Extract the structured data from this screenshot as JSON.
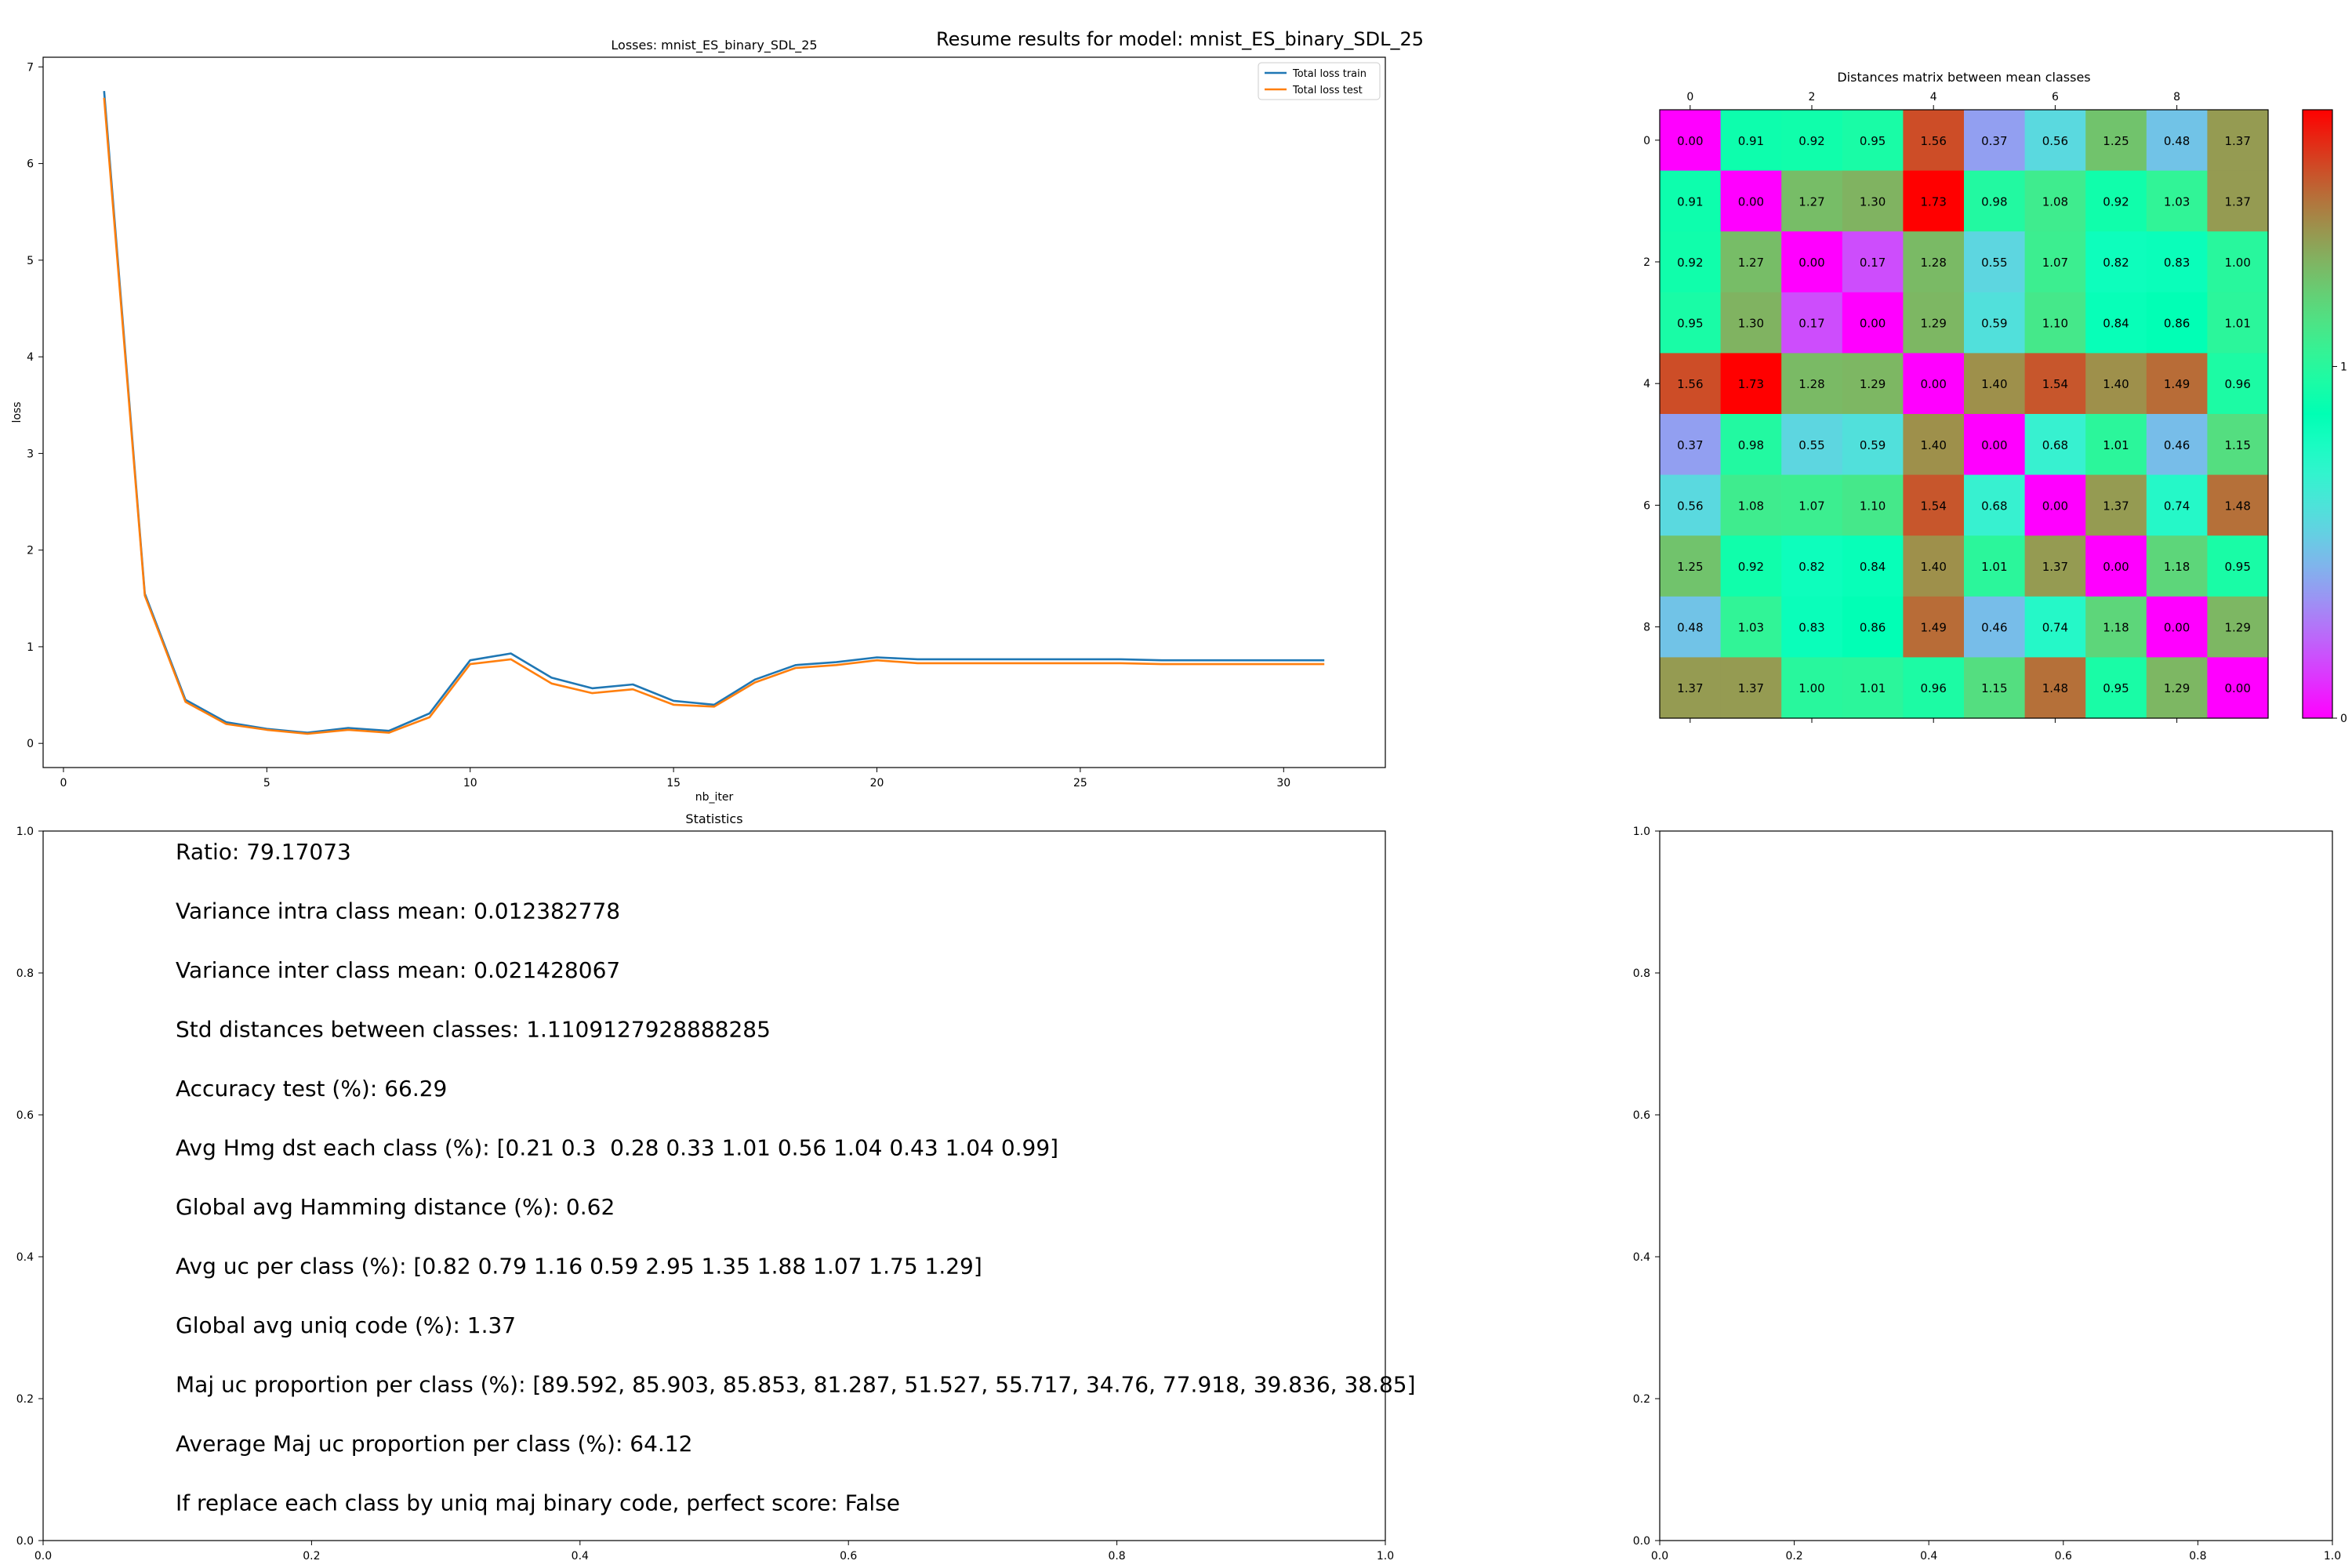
{
  "figure": {
    "suptitle": "Resume results for model: mnist_ES_binary_SDL_25"
  },
  "chart_data": [
    {
      "type": "line",
      "title": "Losses: mnist_ES_binary_SDL_25",
      "xlabel": "nb_iter",
      "ylabel": "loss",
      "xlim": [
        -0.5,
        32.5
      ],
      "ylim": [
        -0.25,
        7.1
      ],
      "xticks": [
        "0",
        "5",
        "10",
        "15",
        "20",
        "25",
        "30"
      ],
      "xtick_values": [
        0,
        5,
        10,
        15,
        20,
        25,
        30
      ],
      "yticks": [
        "0",
        "1",
        "2",
        "3",
        "4",
        "5",
        "6",
        "7"
      ],
      "ytick_values": [
        0,
        1,
        2,
        3,
        4,
        5,
        6,
        7
      ],
      "legend_position": "top-right",
      "x": [
        1,
        2,
        3,
        4,
        5,
        6,
        7,
        8,
        9,
        10,
        11,
        12,
        13,
        14,
        15,
        16,
        17,
        18,
        19,
        20,
        21,
        22,
        23,
        24,
        25,
        26,
        27,
        28,
        29,
        30,
        31
      ],
      "series": [
        {
          "name": "Total loss train",
          "color": "#1f77b4",
          "values": [
            6.75,
            1.55,
            0.45,
            0.22,
            0.15,
            0.11,
            0.16,
            0.13,
            0.31,
            0.86,
            0.93,
            0.68,
            0.57,
            0.61,
            0.44,
            0.4,
            0.66,
            0.81,
            0.84,
            0.89,
            0.87,
            0.87,
            0.87,
            0.87,
            0.87,
            0.87,
            0.86,
            0.86,
            0.86,
            0.86,
            0.86
          ]
        },
        {
          "name": "Total loss test",
          "color": "#ff7f0e",
          "values": [
            6.68,
            1.53,
            0.43,
            0.2,
            0.14,
            0.1,
            0.14,
            0.11,
            0.27,
            0.82,
            0.87,
            0.62,
            0.52,
            0.56,
            0.4,
            0.38,
            0.63,
            0.78,
            0.81,
            0.86,
            0.83,
            0.83,
            0.83,
            0.83,
            0.83,
            0.83,
            0.82,
            0.82,
            0.82,
            0.82,
            0.82
          ]
        }
      ]
    },
    {
      "type": "heatmap",
      "title": "Distances matrix between mean classes",
      "colormap": "rainbow",
      "vmin": 0,
      "vmax": 1.73,
      "xticks": [
        "0",
        "2",
        "4",
        "6",
        "8"
      ],
      "xtick_values": [
        0,
        2,
        4,
        6,
        8
      ],
      "yticks": [
        "0",
        "2",
        "4",
        "6",
        "8"
      ],
      "ytick_values": [
        0,
        2,
        4,
        6,
        8
      ],
      "colorbar_ticks": [
        "0",
        "1"
      ],
      "colorbar_tick_values": [
        0,
        1
      ],
      "matrix": [
        [
          "0.00",
          "0.91",
          "0.92",
          "0.95",
          "1.56",
          "0.37",
          "0.56",
          "1.25",
          "0.48",
          "1.37"
        ],
        [
          "0.91",
          "0.00",
          "1.27",
          "1.30",
          "1.73",
          "0.98",
          "1.08",
          "0.92",
          "1.03",
          "1.37"
        ],
        [
          "0.92",
          "1.27",
          "0.00",
          "0.17",
          "1.28",
          "0.55",
          "1.07",
          "0.82",
          "0.83",
          "1.00"
        ],
        [
          "0.95",
          "1.30",
          "0.17",
          "0.00",
          "1.29",
          "0.59",
          "1.10",
          "0.84",
          "0.86",
          "1.01"
        ],
        [
          "1.56",
          "1.73",
          "1.28",
          "1.29",
          "0.00",
          "1.40",
          "1.54",
          "1.40",
          "1.49",
          "0.96"
        ],
        [
          "0.37",
          "0.98",
          "0.55",
          "0.59",
          "1.40",
          "0.00",
          "0.68",
          "1.01",
          "0.46",
          "1.15"
        ],
        [
          "0.56",
          "1.08",
          "1.07",
          "1.10",
          "1.54",
          "0.68",
          "0.00",
          "1.37",
          "0.74",
          "1.48"
        ],
        [
          "1.25",
          "0.92",
          "0.82",
          "0.84",
          "1.40",
          "1.01",
          "1.37",
          "0.00",
          "1.18",
          "0.95"
        ],
        [
          "0.48",
          "1.03",
          "0.83",
          "0.86",
          "1.49",
          "0.46",
          "0.74",
          "1.18",
          "0.00",
          "1.29"
        ],
        [
          "1.37",
          "1.37",
          "1.00",
          "1.01",
          "0.96",
          "1.15",
          "1.48",
          "0.95",
          "1.29",
          "0.00"
        ]
      ]
    },
    {
      "type": "table",
      "title": "Statistics",
      "xlim": [
        0,
        1
      ],
      "ylim": [
        0,
        1
      ],
      "xticks": [
        "0.0",
        "0.2",
        "0.4",
        "0.6",
        "0.8",
        "1.0"
      ],
      "xtick_values": [
        0,
        0.2,
        0.4,
        0.6,
        0.8,
        1.0
      ],
      "yticks": [
        "0.0",
        "0.2",
        "0.4",
        "0.6",
        "0.8",
        "1.0"
      ],
      "ytick_values": [
        0,
        0.2,
        0.4,
        0.6,
        0.8,
        1.0
      ],
      "lines": [
        "Ratio: 79.17073",
        "Variance intra class mean: 0.012382778",
        "Variance inter class mean: 0.021428067",
        "Std distances between classes: 1.1109127928888285",
        "Accuracy test (%): 66.29",
        "Avg Hmg dst each class (%): [0.21 0.3  0.28 0.33 1.01 0.56 1.04 0.43 1.04 0.99]",
        "Global avg Hamming distance (%): 0.62",
        "Avg uc per class (%): [0.82 0.79 1.16 0.59 2.95 1.35 1.88 1.07 1.75 1.29]",
        "Global avg uniq code (%): 1.37",
        "Maj uc proportion per class (%): [89.592, 85.903, 85.853, 81.287, 51.527, 55.717, 34.76, 77.918, 39.836, 38.85]",
        "Average Maj uc proportion per class (%): 64.12",
        "If replace each class by uniq maj binary code, perfect score: False"
      ]
    },
    {
      "type": "scatter",
      "title": "",
      "xlim": [
        0,
        1
      ],
      "ylim": [
        0,
        1
      ],
      "xticks": [
        "0.0",
        "0.2",
        "0.4",
        "0.6",
        "0.8",
        "1.0"
      ],
      "xtick_values": [
        0,
        0.2,
        0.4,
        0.6,
        0.8,
        1.0
      ],
      "yticks": [
        "0.0",
        "0.2",
        "0.4",
        "0.6",
        "0.8",
        "1.0"
      ],
      "ytick_values": [
        0,
        0.2,
        0.4,
        0.6,
        0.8,
        1.0
      ]
    }
  ]
}
